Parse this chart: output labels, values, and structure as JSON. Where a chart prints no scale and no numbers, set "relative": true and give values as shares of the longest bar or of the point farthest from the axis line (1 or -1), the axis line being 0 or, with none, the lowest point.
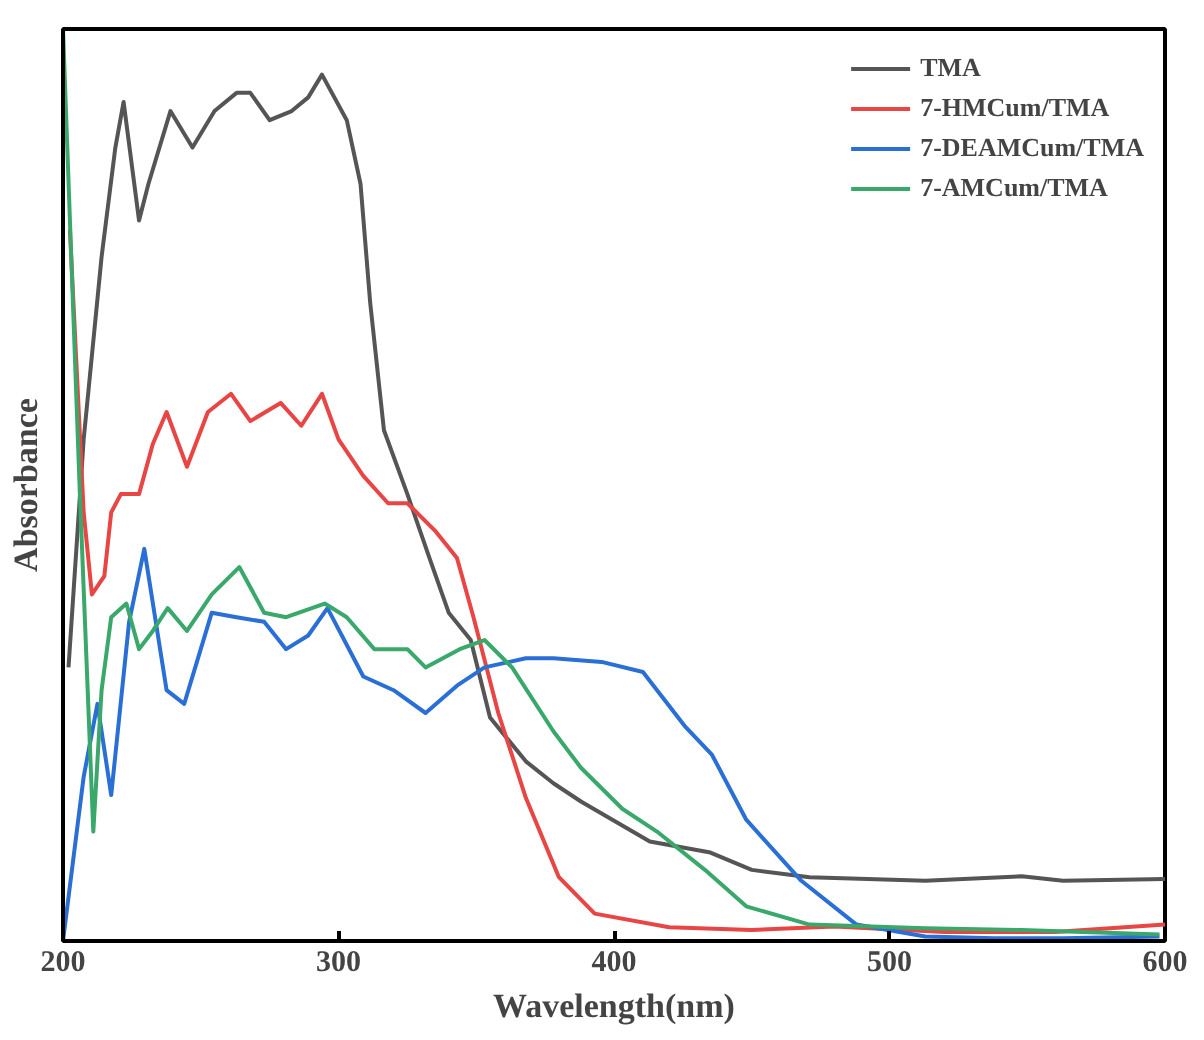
{
  "chart_data": {
    "type": "line",
    "relative": true,
    "xlabel": "Wavelength(nm)",
    "ylabel": "Absorbance",
    "xlim": [
      200,
      600
    ],
    "xticks": [
      200,
      300,
      400,
      500,
      600
    ],
    "grid": false,
    "legend": "top right",
    "marker": "none",
    "line_style": "solid",
    "series": [
      {
        "name": "TMA",
        "color": "#555555",
        "x": [
          202,
          207.5,
          214,
          219,
          222,
          227.6,
          231,
          239,
          247,
          255,
          263,
          268,
          275,
          283,
          289,
          294,
          303,
          308,
          311.5,
          316.5,
          325,
          333,
          340,
          348,
          355,
          368,
          378,
          388,
          413,
          435,
          450,
          471,
          513,
          548,
          563,
          600
        ],
        "values": [
          0.3,
          0.55,
          0.75,
          0.87,
          0.92,
          0.79,
          0.83,
          0.91,
          0.87,
          0.91,
          0.93,
          0.93,
          0.9,
          0.91,
          0.925,
          0.95,
          0.9,
          0.83,
          0.7,
          0.56,
          0.49,
          0.42,
          0.36,
          0.33,
          0.245,
          0.197,
          0.173,
          0.153,
          0.109,
          0.097,
          0.078,
          0.07,
          0.066,
          0.071,
          0.066,
          0.068
        ]
      },
      {
        "name": "7-HMCum/TMA",
        "color": "#e84545",
        "x": [
          202.5,
          207.5,
          210.5,
          215,
          217.5,
          221,
          227.6,
          232.6,
          237.6,
          245,
          252.6,
          261,
          268,
          279,
          286.5,
          294,
          300,
          309,
          318,
          325,
          335,
          343,
          349,
          358,
          368,
          380,
          393,
          420,
          450,
          480,
          520,
          560,
          600
        ],
        "values": [
          0.78,
          0.47,
          0.38,
          0.4,
          0.47,
          0.49,
          0.49,
          0.545,
          0.58,
          0.52,
          0.58,
          0.6,
          0.57,
          0.59,
          0.565,
          0.6,
          0.55,
          0.51,
          0.48,
          0.48,
          0.45,
          0.42,
          0.355,
          0.25,
          0.157,
          0.07,
          0.03,
          0.015,
          0.012,
          0.016,
          0.01,
          0.01,
          0.018
        ]
      },
      {
        "name": "7-DEAMCum/TMA",
        "color": "#2a6fd6",
        "x": [
          200,
          207.5,
          212.5,
          217.5,
          224,
          229.5,
          237.6,
          244,
          254,
          263,
          273,
          281,
          289,
          296,
          309,
          320,
          331.6,
          343,
          353,
          368,
          378,
          395.5,
          410.5,
          425.6,
          435.6,
          448,
          468,
          488,
          513,
          538,
          563,
          598
        ],
        "values": [
          0,
          0.18,
          0.26,
          0.16,
          0.35,
          0.43,
          0.275,
          0.26,
          0.36,
          0.355,
          0.35,
          0.32,
          0.335,
          0.365,
          0.29,
          0.275,
          0.25,
          0.28,
          0.3,
          0.31,
          0.31,
          0.306,
          0.295,
          0.236,
          0.204,
          0.133,
          0.066,
          0.018,
          0.005,
          0.003,
          0.003,
          0.005
        ]
      },
      {
        "name": "7-AMCum/TMA",
        "color": "#3aa86b",
        "x": [
          200,
          206,
          211,
          214,
          217.5,
          223,
          227.6,
          232.6,
          238,
          245,
          254,
          264,
          273,
          281,
          295,
          303,
          313,
          325,
          331.6,
          344,
          353,
          363,
          378,
          388,
          403,
          415.6,
          433,
          448,
          471,
          513,
          548,
          598
        ],
        "values": [
          1.0,
          0.5,
          0.12,
          0.275,
          0.355,
          0.37,
          0.32,
          0.34,
          0.365,
          0.34,
          0.38,
          0.41,
          0.36,
          0.355,
          0.37,
          0.355,
          0.32,
          0.32,
          0.3,
          0.32,
          0.33,
          0.3,
          0.23,
          0.19,
          0.145,
          0.12,
          0.078,
          0.038,
          0.018,
          0.014,
          0.012,
          0.007
        ]
      }
    ]
  }
}
